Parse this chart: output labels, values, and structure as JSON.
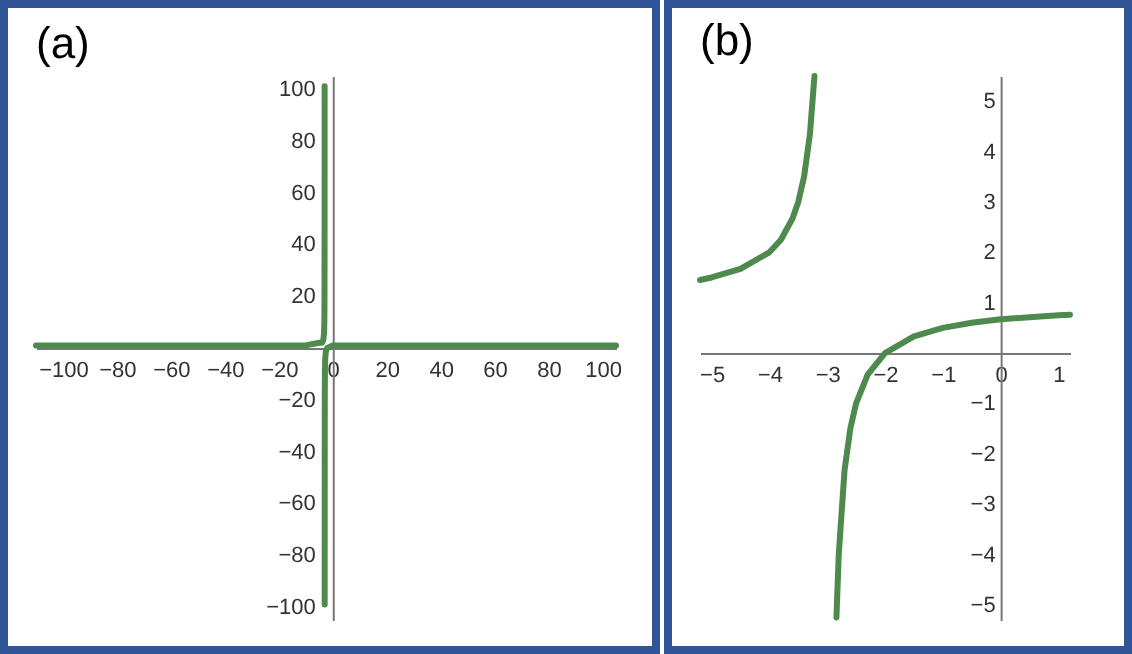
{
  "chart_data": [
    {
      "type": "line",
      "title": "(a)",
      "xlim": [
        -110,
        105
      ],
      "ylim": [
        -105,
        105
      ],
      "xticks": [
        -100,
        -80,
        -60,
        -40,
        -20,
        0,
        20,
        40,
        60,
        80,
        100
      ],
      "yticks": [
        -100,
        -80,
        -60,
        -40,
        -20,
        20,
        40,
        60,
        80,
        100
      ],
      "grid": false,
      "series": [
        {
          "color": "#4e8a4e",
          "x": [
            -110,
            -50,
            -20,
            -10,
            -5,
            -4,
            -3.5,
            -3.2,
            -3.1,
            -3.05,
            -3.02,
            -3.01
          ],
          "values": [
            1,
            1,
            1,
            1,
            2,
            2,
            3,
            6,
            11,
            21,
            51,
            101
          ]
        },
        {
          "color": "#4e8a4e",
          "x": [
            -2.99,
            -2.98,
            -2.95,
            -2.9,
            -2.8,
            -2.5,
            -2,
            0,
            10,
            50,
            105
          ],
          "values": [
            -99,
            -49,
            -19,
            -9,
            -4,
            -1,
            0,
            1,
            1,
            1,
            1
          ]
        }
      ]
    },
    {
      "type": "line",
      "title": "(b)",
      "xlim": [
        -5.2,
        1.2
      ],
      "ylim": [
        -5.3,
        5.5
      ],
      "xticks": [
        -5,
        -4,
        -3,
        -2,
        -1,
        0,
        1
      ],
      "yticks": [
        -5,
        -4,
        -3,
        -2,
        -1,
        1,
        2,
        3,
        4,
        5
      ],
      "grid": false,
      "series": [
        {
          "color": "#4e8a4e",
          "x": [
            -5.2,
            -5,
            -4.5,
            -4,
            -3.8,
            -3.6,
            -3.5,
            -3.4,
            -3.3,
            -3.22
          ],
          "values": [
            1.45,
            1.5,
            1.67,
            2,
            2.25,
            2.67,
            3,
            3.5,
            4.33,
            5.5
          ]
        },
        {
          "color": "#4e8a4e",
          "x": [
            -2.84,
            -2.8,
            -2.7,
            -2.6,
            -2.5,
            -2.3,
            -2,
            -1.5,
            -1,
            -0.5,
            0,
            0.5,
            1,
            1.2
          ],
          "values": [
            -5.25,
            -4,
            -2.33,
            -1.5,
            -1,
            -0.43,
            0,
            0.33,
            0.5,
            0.6,
            0.67,
            0.71,
            0.75,
            0.76
          ]
        }
      ]
    }
  ]
}
